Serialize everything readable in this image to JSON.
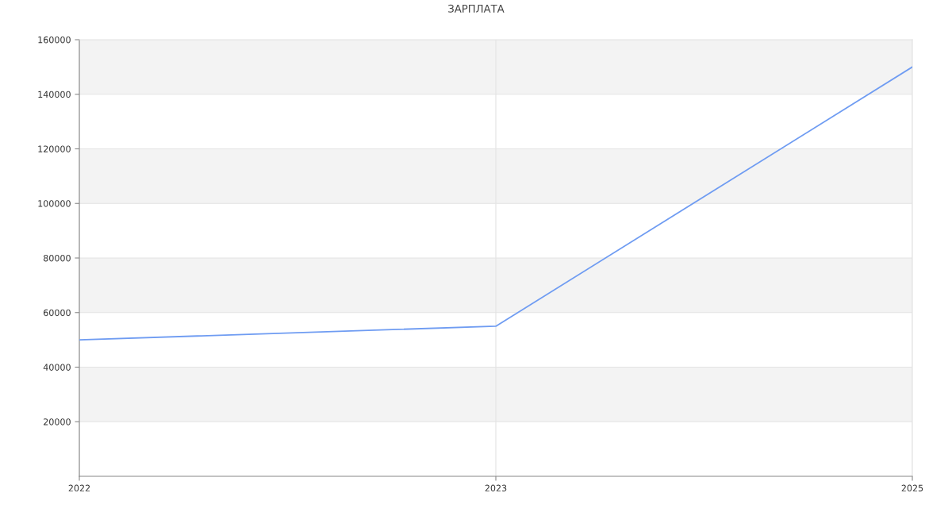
{
  "chart_data": {
    "type": "line",
    "title": "ЗАРПЛАТА",
    "categories": [
      "2022",
      "2023",
      "2025"
    ],
    "series": [
      {
        "color": "#6f9cf2",
        "values": [
          50000,
          55000,
          150000
        ]
      }
    ],
    "ylim": [
      0,
      160000
    ],
    "yticks": [
      20000,
      40000,
      60000,
      80000,
      100000,
      120000,
      140000,
      160000
    ],
    "grid": true,
    "marker": "none",
    "line_style": "solid"
  }
}
